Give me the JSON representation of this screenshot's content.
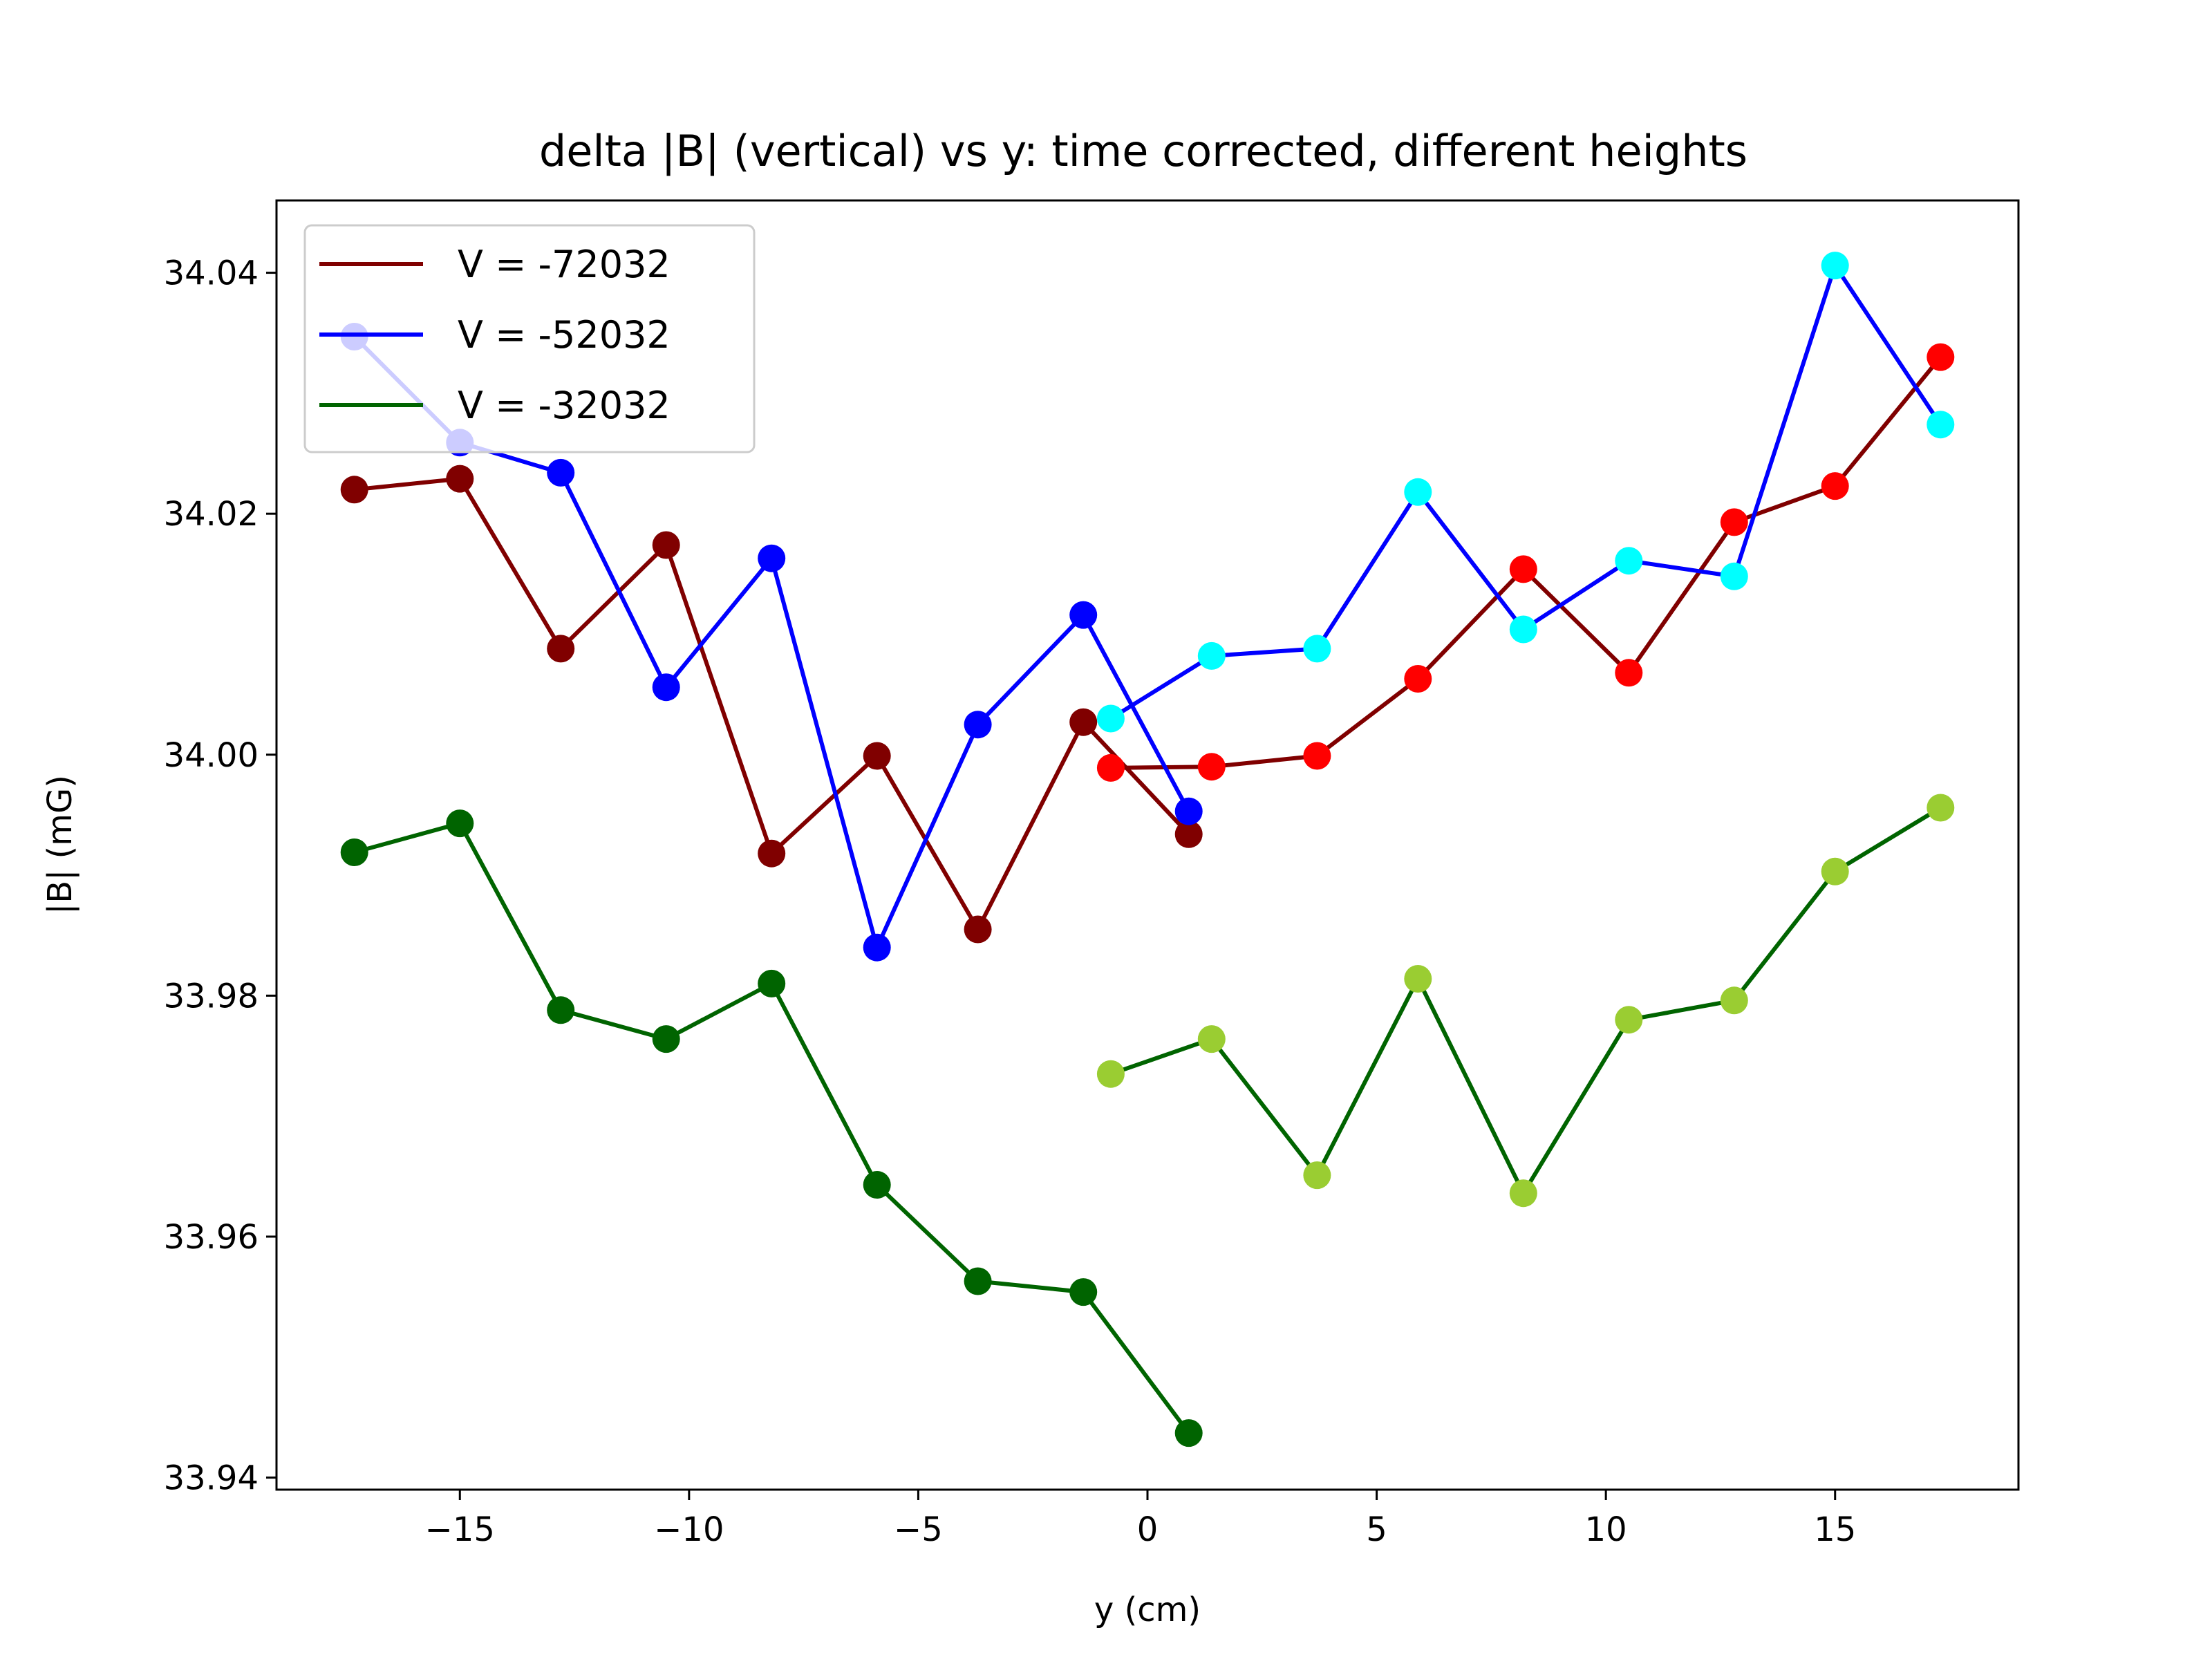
{
  "chart_data": {
    "type": "line",
    "title": "delta |B| (vertical) vs y: time corrected, different heights",
    "xlabel": "y (cm)",
    "ylabel": "|B| (mG)",
    "xlim": [
      -19,
      19
    ],
    "ylim": [
      33.939,
      34.046
    ],
    "xticks": [
      -15,
      -10,
      -5,
      0,
      5,
      10,
      15
    ],
    "xtick_labels": [
      "−15",
      "−10",
      "−5",
      "0",
      "5",
      "10",
      "15"
    ],
    "yticks": [
      33.94,
      33.96,
      33.98,
      34.0,
      34.02,
      34.04
    ],
    "ytick_labels": [
      "33.94",
      "33.96",
      "33.98",
      "34.00",
      "34.02",
      "34.04"
    ],
    "grid": false,
    "legend_position": "top-left",
    "series": [
      {
        "name": "V = -72032",
        "line_color": "#800000",
        "segments": [
          {
            "marker_color": "#800000",
            "x": [
              -17.3,
              -15.0,
              -12.8,
              -10.5,
              -8.2,
              -5.9,
              -3.7,
              -1.4,
              0.9
            ],
            "y": [
              34.022,
              34.0229,
              34.0088,
              34.0174,
              33.9918,
              33.9999,
              33.9855,
              34.0027,
              33.9934
            ]
          },
          {
            "marker_color": "#ff0000",
            "x": [
              -0.8,
              1.4,
              3.7,
              5.9,
              8.2,
              10.5,
              12.8,
              15.0,
              17.3
            ],
            "y": [
              33.9989,
              33.999,
              33.9999,
              34.0063,
              34.0154,
              34.0068,
              34.0193,
              34.0223,
              34.033
            ]
          }
        ]
      },
      {
        "name": "V = -52032",
        "line_color": "#0000ff",
        "segments": [
          {
            "marker_color": "#0000ff",
            "x": [
              -17.3,
              -15.0,
              -12.8,
              -10.5,
              -8.2,
              -5.9,
              -3.7,
              -1.4,
              0.9
            ],
            "y": [
              34.0347,
              34.0259,
              34.0234,
              34.0056,
              34.0163,
              33.984,
              34.0025,
              34.0116,
              33.9953
            ]
          },
          {
            "marker_color": "#00ffff",
            "x": [
              -0.8,
              1.4,
              3.7,
              5.9,
              8.2,
              10.5,
              12.8,
              15.0,
              17.3
            ],
            "y": [
              34.003,
              34.0082,
              34.0088,
              34.0218,
              34.0104,
              34.0161,
              34.0148,
              34.0406,
              34.0274
            ]
          }
        ]
      },
      {
        "name": "V = -32032",
        "line_color": "#006400",
        "segments": [
          {
            "marker_color": "#006400",
            "x": [
              -17.3,
              -15.0,
              -12.8,
              -10.5,
              -8.2,
              -5.9,
              -3.7,
              -1.4,
              0.9
            ],
            "y": [
              33.9919,
              33.9943,
              33.9788,
              33.9764,
              33.981,
              33.9643,
              33.9563,
              33.9554,
              33.9437
            ]
          },
          {
            "marker_color": "#9acd32",
            "x": [
              -0.8,
              1.4,
              3.7,
              5.9,
              8.2,
              10.5,
              12.8,
              15.0,
              17.3
            ],
            "y": [
              33.9735,
              33.9764,
              33.9651,
              33.9814,
              33.9636,
              33.978,
              33.9796,
              33.9903,
              33.9956
            ]
          }
        ]
      }
    ]
  }
}
